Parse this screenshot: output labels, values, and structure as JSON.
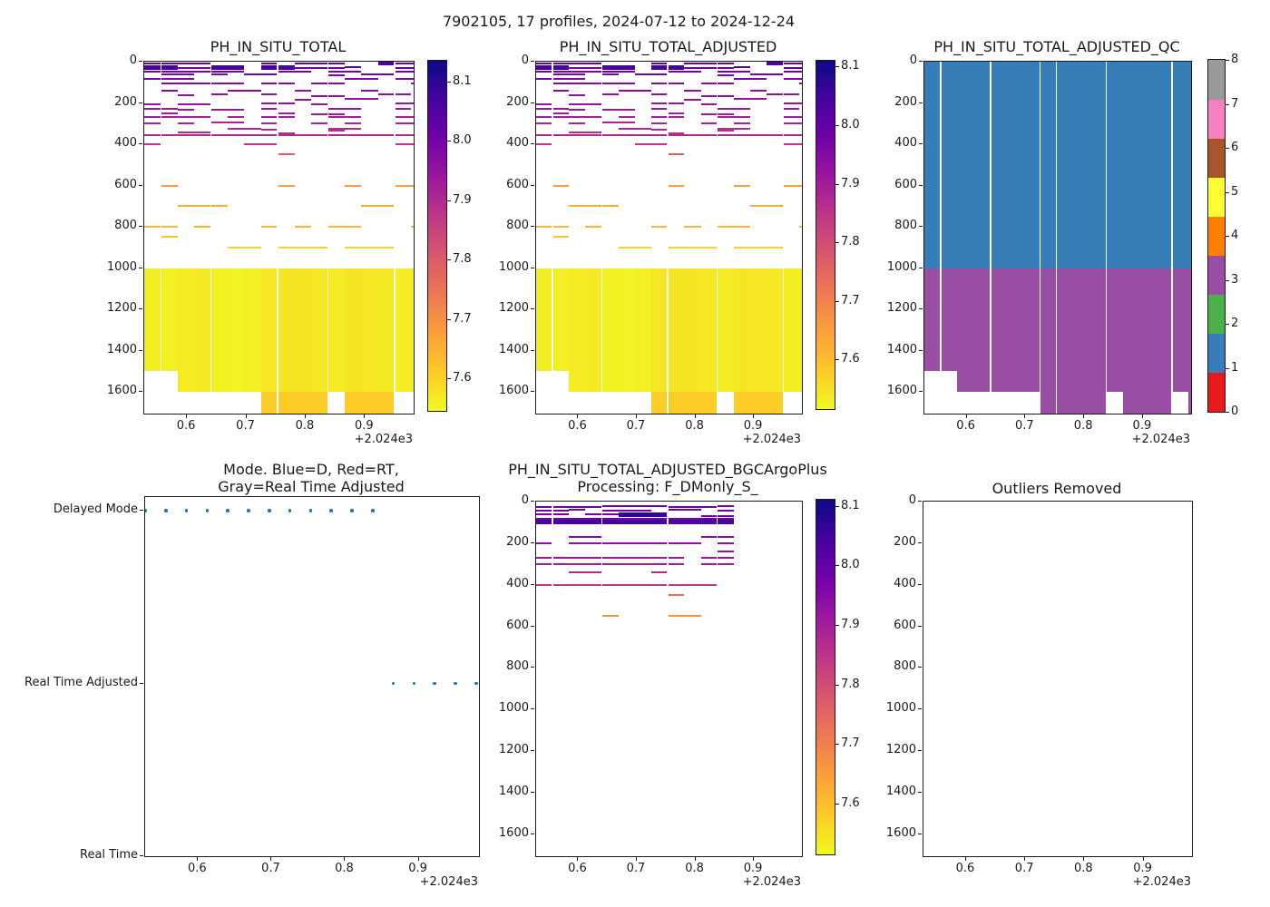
{
  "figure_title": "7902105, 17 profiles, 2024-07-12 to 2024-12-24",
  "axes": {
    "x_ticks": [
      0.6,
      0.7,
      0.8,
      0.9
    ],
    "x_tick_labels": [
      "0.6",
      "0.7",
      "0.8",
      "0.9"
    ],
    "x_offset_label": "+2.024e3",
    "x_range": [
      0.528,
      0.982
    ],
    "depth_ticks": [
      0,
      200,
      400,
      600,
      800,
      1000,
      1200,
      1400,
      1600
    ],
    "depth_range": [
      0,
      1705
    ]
  },
  "colors": {
    "plasma_reversed_stops": [
      "#0d0887",
      "#46039f",
      "#7201a8",
      "#9c179e",
      "#bd3786",
      "#d8576b",
      "#ed7953",
      "#fb9f3a",
      "#fdca26",
      "#f0f921"
    ],
    "ph_color_range": [
      7.545,
      8.135
    ],
    "qc_palette": [
      "#e41a1c",
      "#377eb8",
      "#4daf4a",
      "#984ea3",
      "#ff7f00",
      "#ffff33",
      "#a65628",
      "#f781bf",
      "#999999"
    ],
    "marker_blue": "#1f77b4",
    "spine": "#1a1a1a"
  },
  "profiles": {
    "count": 17,
    "times": [
      0.528,
      0.5561,
      0.5843,
      0.6124,
      0.6405,
      0.6686,
      0.6968,
      0.7249,
      0.753,
      0.7811,
      0.8093,
      0.8374,
      0.8655,
      0.8936,
      0.9218,
      0.9499,
      0.978
    ],
    "cell_edges": [
      0.528,
      0.5561,
      0.5843,
      0.6124,
      0.6405,
      0.6686,
      0.6968,
      0.7249,
      0.753,
      0.7811,
      0.8093,
      0.8374,
      0.8655,
      0.8936,
      0.9218,
      0.9499,
      0.978,
      0.982
    ],
    "gap_x": [
      0.5561,
      0.6405,
      0.753,
      0.8374,
      0.9499
    ],
    "deep_top": 1000,
    "deep_split": 1600,
    "deep_bottoms": [
      1500,
      1500,
      1600,
      1600,
      1600,
      1600,
      1600,
      1705,
      1705,
      1705,
      1705,
      1600,
      1705,
      1705,
      1705,
      1600,
      1600
    ],
    "qc_deep_bottoms": [
      1500,
      1500,
      1600,
      1600,
      1600,
      1600,
      1600,
      1705,
      1705,
      1705,
      1705,
      1600,
      1705,
      1705,
      1705,
      1600,
      1705
    ],
    "deep_ph": [
      7.561,
      7.557,
      7.564,
      7.567,
      7.555,
      7.554,
      7.559,
      7.569,
      7.571,
      7.573,
      7.569,
      7.564,
      7.573,
      7.57,
      7.567,
      7.562,
      7.562
    ],
    "deep_lower_ph": 7.606
  },
  "colorbars": {
    "cb_ph_total": {
      "ticks": [
        8.1,
        8.0,
        7.9,
        7.8,
        7.7,
        7.6
      ],
      "range": [
        7.545,
        8.135
      ],
      "kind": "ph"
    },
    "cb_ph_adjusted": {
      "ticks": [
        8.1,
        8.0,
        7.9,
        7.8,
        7.7,
        7.6
      ],
      "range": [
        7.515,
        8.11
      ],
      "kind": "ph"
    },
    "cb_qc": {
      "ticks": [
        0,
        1,
        2,
        3,
        4,
        5,
        6,
        7,
        8
      ],
      "range": [
        0,
        8
      ],
      "kind": "qc"
    },
    "cb_bgc": {
      "ticks": [
        8.1,
        8.0,
        7.9,
        7.8,
        7.7,
        7.6
      ],
      "range": [
        7.515,
        8.11
      ],
      "kind": "ph"
    }
  },
  "panels": {
    "ph_total": {
      "type": "ph",
      "title": "PH_IN_SITU_TOTAL",
      "deep": true,
      "segments": [
        [
          8,
          1,
          2,
          8.02
        ],
        [
          8,
          3,
          4,
          8.02
        ],
        [
          8,
          8,
          8,
          8.02
        ],
        [
          8,
          10,
          10,
          8.02
        ],
        [
          10,
          11,
          12,
          8.02
        ],
        [
          6,
          15,
          15,
          8.06,
          1
        ],
        [
          8,
          16,
          17,
          8.02
        ],
        [
          28,
          1,
          2,
          8.07,
          1
        ],
        [
          30,
          3,
          4,
          8.0
        ],
        [
          28,
          5,
          6,
          8.07,
          1
        ],
        [
          28,
          8,
          9,
          8.07,
          1
        ],
        [
          30,
          10,
          12,
          8.02
        ],
        [
          28,
          13,
          13,
          8.04
        ],
        [
          30,
          16,
          17,
          8.03
        ],
        [
          48,
          1,
          2,
          8.0
        ],
        [
          48,
          3,
          4,
          7.99
        ],
        [
          48,
          5,
          6,
          8.0
        ],
        [
          48,
          9,
          10,
          8.0
        ],
        [
          48,
          12,
          13,
          8.0
        ],
        [
          48,
          16,
          17,
          8.0
        ],
        [
          62,
          2,
          3,
          7.99
        ],
        [
          62,
          5,
          5,
          7.99
        ],
        [
          60,
          7,
          8,
          8.0
        ],
        [
          66,
          12,
          12,
          7.99
        ],
        [
          62,
          14,
          15,
          8.0
        ],
        [
          82,
          1,
          1,
          7.99
        ],
        [
          82,
          2,
          3,
          7.98
        ],
        [
          85,
          13,
          14,
          7.98
        ],
        [
          82,
          16,
          17,
          7.98
        ],
        [
          105,
          2,
          4,
          7.97
        ],
        [
          105,
          5,
          6,
          7.97
        ],
        [
          105,
          8,
          9,
          7.97
        ],
        [
          105,
          11,
          12,
          7.97
        ],
        [
          105,
          17,
          17,
          7.97
        ],
        [
          140,
          2,
          2,
          7.97
        ],
        [
          140,
          6,
          7,
          7.97
        ],
        [
          142,
          10,
          10,
          7.96
        ],
        [
          140,
          14,
          14,
          7.96
        ],
        [
          162,
          3,
          3,
          7.96
        ],
        [
          160,
          5,
          5,
          7.96
        ],
        [
          160,
          8,
          8,
          7.96
        ],
        [
          165,
          11,
          12,
          7.96
        ],
        [
          160,
          15,
          16,
          7.96
        ],
        [
          182,
          13,
          14,
          7.95
        ],
        [
          186,
          10,
          10,
          7.95
        ],
        [
          205,
          1,
          1,
          7.95
        ],
        [
          205,
          3,
          4,
          7.95
        ],
        [
          202,
          8,
          9,
          7.95
        ],
        [
          205,
          11,
          11,
          7.95
        ],
        [
          202,
          16,
          17,
          7.95
        ],
        [
          230,
          1,
          2,
          7.94
        ],
        [
          232,
          3,
          3,
          7.94
        ],
        [
          235,
          5,
          6,
          7.94
        ],
        [
          230,
          8,
          8,
          7.94
        ],
        [
          230,
          12,
          13,
          7.94
        ],
        [
          230,
          16,
          16,
          7.94
        ],
        [
          252,
          9,
          9,
          7.93
        ],
        [
          255,
          11,
          12,
          7.93
        ],
        [
          250,
          2,
          2,
          7.93
        ],
        [
          270,
          1,
          2,
          7.92
        ],
        [
          270,
          3,
          4,
          7.92
        ],
        [
          266,
          6,
          6,
          7.92
        ],
        [
          270,
          8,
          9,
          7.92
        ],
        [
          270,
          12,
          13,
          7.92
        ],
        [
          270,
          16,
          17,
          7.92
        ],
        [
          300,
          1,
          1,
          7.91
        ],
        [
          300,
          3,
          3,
          7.91
        ],
        [
          296,
          5,
          6,
          7.91
        ],
        [
          300,
          8,
          8,
          7.91
        ],
        [
          300,
          11,
          11,
          7.91
        ],
        [
          300,
          13,
          13,
          7.91
        ],
        [
          300,
          16,
          17,
          7.91
        ],
        [
          326,
          6,
          7,
          7.9
        ],
        [
          330,
          8,
          8,
          7.9
        ],
        [
          324,
          12,
          12,
          7.89
        ],
        [
          333,
          12,
          12,
          7.89
        ],
        [
          326,
          13,
          13,
          7.9
        ],
        [
          342,
          3,
          4,
          7.89
        ],
        [
          345,
          9,
          9,
          7.89
        ],
        [
          358,
          1,
          4,
          7.9
        ],
        [
          358,
          5,
          8,
          7.9
        ],
        [
          358,
          9,
          11,
          7.9
        ],
        [
          358,
          12,
          15,
          7.9
        ],
        [
          358,
          16,
          17,
          7.9
        ],
        [
          400,
          1,
          1,
          7.87
        ],
        [
          400,
          7,
          8,
          7.87
        ],
        [
          400,
          16,
          17,
          7.87
        ],
        [
          450,
          9,
          9,
          7.79
        ],
        [
          600,
          2,
          2,
          7.68
        ],
        [
          600,
          9,
          9,
          7.68
        ],
        [
          600,
          13,
          13,
          7.68
        ],
        [
          600,
          16,
          17,
          7.68
        ],
        [
          700,
          3,
          4,
          7.66
        ],
        [
          700,
          5,
          5,
          7.66
        ],
        [
          700,
          14,
          15,
          7.66
        ],
        [
          800,
          1,
          1,
          7.64
        ],
        [
          800,
          2,
          2,
          7.64
        ],
        [
          800,
          4,
          4,
          7.64
        ],
        [
          800,
          8,
          8,
          7.64
        ],
        [
          800,
          10,
          10,
          7.64
        ],
        [
          800,
          12,
          13,
          7.64
        ],
        [
          800,
          17,
          17,
          7.64
        ],
        [
          850,
          2,
          2,
          7.62
        ],
        [
          900,
          6,
          7,
          7.6
        ],
        [
          900,
          9,
          11,
          7.6
        ],
        [
          900,
          13,
          14,
          7.6
        ],
        [
          900,
          15,
          15,
          7.6
        ]
      ]
    },
    "ph_adjusted": {
      "type": "ph",
      "title": "PH_IN_SITU_TOTAL_ADJUSTED",
      "deep": true,
      "segments_ref": "ph_total"
    },
    "qc": {
      "type": "qc",
      "title": "PH_IN_SITU_TOTAL_ADJUSTED_QC",
      "shallow_flag": 1,
      "deep_flag": 3
    },
    "mode": {
      "type": "mode",
      "title_line1": "Mode. Blue=D, Red=RT,",
      "title_line2": "Gray=Real Time Adjusted",
      "categories": [
        "Delayed Mode",
        "Real Time Adjusted",
        "Real Time"
      ],
      "category_values": [
        2,
        1,
        0
      ],
      "y_range": [
        0,
        2.08
      ],
      "delayed_mode_x": [
        0.528,
        0.5561,
        0.5843,
        0.6124,
        0.6405,
        0.6686,
        0.6968,
        0.7249,
        0.753,
        0.7811,
        0.8093,
        0.8374
      ],
      "real_time_adjusted_x": [
        0.8655,
        0.8936,
        0.9218,
        0.9499,
        0.978
      ],
      "real_time_x": []
    },
    "bgc": {
      "type": "ph",
      "title_line1": "PH_IN_SITU_TOTAL_ADJUSTED_BGCArgoPlus",
      "title_line2": "Processing: F_DMonly_S_",
      "deep": false,
      "segments": [
        [
          25,
          1,
          1,
          8.0
        ],
        [
          25,
          2,
          4,
          8.0
        ],
        [
          22,
          5,
          8,
          8.01
        ],
        [
          25,
          9,
          10,
          8.0
        ],
        [
          28,
          11,
          11,
          8.0
        ],
        [
          22,
          12,
          12,
          8.0
        ],
        [
          45,
          1,
          2,
          8.0
        ],
        [
          40,
          3,
          3,
          8.0
        ],
        [
          45,
          5,
          7,
          8.0
        ],
        [
          40,
          9,
          10,
          8.01
        ],
        [
          45,
          12,
          12,
          8.0
        ],
        [
          65,
          6,
          7,
          8.1,
          1
        ],
        [
          65,
          8,
          8,
          8.09,
          1
        ],
        [
          62,
          1,
          2,
          8.0
        ],
        [
          62,
          4,
          5,
          8.0
        ],
        [
          68,
          11,
          12,
          8.0
        ],
        [
          85,
          1,
          4,
          8.01
        ],
        [
          85,
          5,
          8,
          8.01
        ],
        [
          85,
          9,
          12,
          8.01
        ],
        [
          100,
          1,
          2,
          8.06,
          1
        ],
        [
          100,
          3,
          8,
          8.07,
          1
        ],
        [
          100,
          9,
          12,
          8.06,
          1
        ],
        [
          170,
          3,
          4,
          7.97
        ],
        [
          170,
          11,
          12,
          7.97
        ],
        [
          200,
          1,
          1,
          7.96
        ],
        [
          200,
          3,
          8,
          7.96
        ],
        [
          200,
          9,
          10,
          7.96
        ],
        [
          200,
          12,
          12,
          7.96
        ],
        [
          240,
          12,
          12,
          7.95
        ],
        [
          270,
          1,
          4,
          7.94
        ],
        [
          270,
          5,
          8,
          7.94
        ],
        [
          270,
          9,
          9,
          7.94
        ],
        [
          270,
          11,
          12,
          7.94
        ],
        [
          300,
          1,
          4,
          7.93
        ],
        [
          300,
          5,
          8,
          7.93
        ],
        [
          300,
          9,
          9,
          7.93
        ],
        [
          300,
          11,
          11,
          7.93
        ],
        [
          300,
          12,
          12,
          7.93
        ],
        [
          340,
          3,
          4,
          7.9
        ],
        [
          340,
          8,
          8,
          7.9
        ],
        [
          400,
          1,
          4,
          7.87
        ],
        [
          400,
          5,
          8,
          7.87
        ],
        [
          400,
          9,
          11,
          7.87
        ],
        [
          450,
          9,
          9,
          7.76
        ],
        [
          550,
          5,
          5,
          7.7
        ],
        [
          550,
          9,
          10,
          7.7
        ]
      ]
    },
    "outliers": {
      "type": "empty",
      "title": "Outliers Removed"
    }
  }
}
